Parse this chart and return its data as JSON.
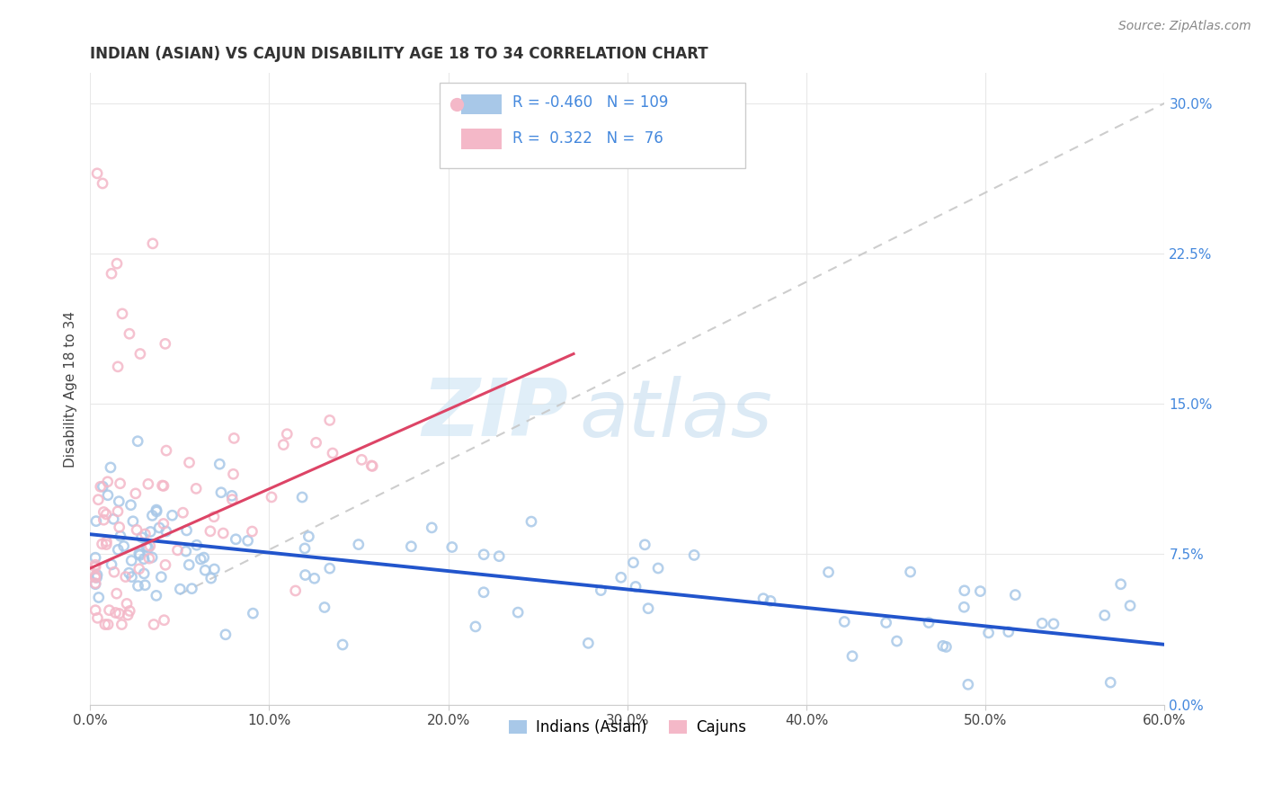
{
  "title": "INDIAN (ASIAN) VS CAJUN DISABILITY AGE 18 TO 34 CORRELATION CHART",
  "source_text": "Source: ZipAtlas.com",
  "ylabel": "Disability Age 18 to 34",
  "xlim": [
    0.0,
    0.6
  ],
  "ylim": [
    0.0,
    0.315
  ],
  "xticks": [
    0.0,
    0.1,
    0.2,
    0.3,
    0.4,
    0.5,
    0.6
  ],
  "xticklabels": [
    "0.0%",
    "10.0%",
    "20.0%",
    "30.0%",
    "40.0%",
    "50.0%",
    "60.0%"
  ],
  "yticks": [
    0.0,
    0.075,
    0.15,
    0.225,
    0.3
  ],
  "yticklabels": [
    "0.0%",
    "7.5%",
    "15.0%",
    "22.5%",
    "30.0%"
  ],
  "blue_scatter_color": "#a8c8e8",
  "pink_scatter_color": "#f4b8c8",
  "blue_line_color": "#2255cc",
  "pink_line_color": "#dd4466",
  "ref_line_color": "#c8c8c8",
  "grid_color": "#e8e8e8",
  "tick_color": "#4488dd",
  "title_color": "#333333",
  "legend_R1": "-0.460",
  "legend_N1": "109",
  "legend_R2": "0.322",
  "legend_N2": "76",
  "legend_label1": "Indians (Asian)",
  "legend_label2": "Cajuns",
  "watermark_zip": "ZIP",
  "watermark_atlas": "atlas",
  "blue_trend_x0": 0.0,
  "blue_trend_y0": 0.085,
  "blue_trend_x1": 0.6,
  "blue_trend_y1": 0.03,
  "pink_trend_x0": 0.0,
  "pink_trend_y0": 0.068,
  "pink_trend_x1": 0.27,
  "pink_trend_y1": 0.175,
  "ref_line_x0": 0.05,
  "ref_line_y0": 0.055,
  "ref_line_x1": 0.6,
  "ref_line_y1": 0.3
}
